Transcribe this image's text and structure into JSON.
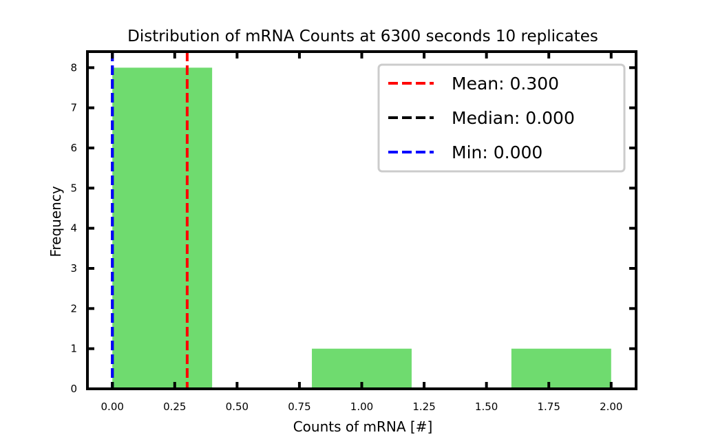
{
  "chart_data": {
    "type": "bar",
    "title": "Distribution of mRNA Counts at 6300 seconds 10 replicates",
    "xlabel": "Counts of mRNA [#]",
    "ylabel": "Frequency",
    "xlim": [
      -0.1,
      2.1
    ],
    "ylim": [
      0,
      8.4
    ],
    "xticks": [
      0.0,
      0.25,
      0.5,
      0.75,
      1.0,
      1.25,
      1.5,
      1.75,
      2.0
    ],
    "xtick_labels": [
      "0.00",
      "0.25",
      "0.50",
      "0.75",
      "1.00",
      "1.25",
      "1.50",
      "1.75",
      "2.00"
    ],
    "yticks": [
      0,
      1,
      2,
      3,
      4,
      5,
      6,
      7,
      8
    ],
    "ytick_labels": [
      "0",
      "1",
      "2",
      "3",
      "4",
      "5",
      "6",
      "7",
      "8"
    ],
    "bins": [
      {
        "x0": 0.0,
        "x1": 0.4,
        "count": 8
      },
      {
        "x0": 0.4,
        "x1": 0.8,
        "count": 0
      },
      {
        "x0": 0.8,
        "x1": 1.2,
        "count": 1
      },
      {
        "x0": 1.2,
        "x1": 1.6,
        "count": 0
      },
      {
        "x0": 1.6,
        "x1": 2.0,
        "count": 1
      }
    ],
    "bar_color": "#6fdb6f",
    "grid": false,
    "legend_position": "upper right",
    "reference_lines": [
      {
        "label": "Mean: 0.300",
        "x": 0.3,
        "color": "#ff0000",
        "style": "dashed"
      },
      {
        "label": "Median: 0.000",
        "x": 0.0,
        "color": "#000000",
        "style": "dashed"
      },
      {
        "label": "Min: 0.000",
        "x": 0.0,
        "color": "#0000ff",
        "style": "dashed"
      }
    ]
  }
}
